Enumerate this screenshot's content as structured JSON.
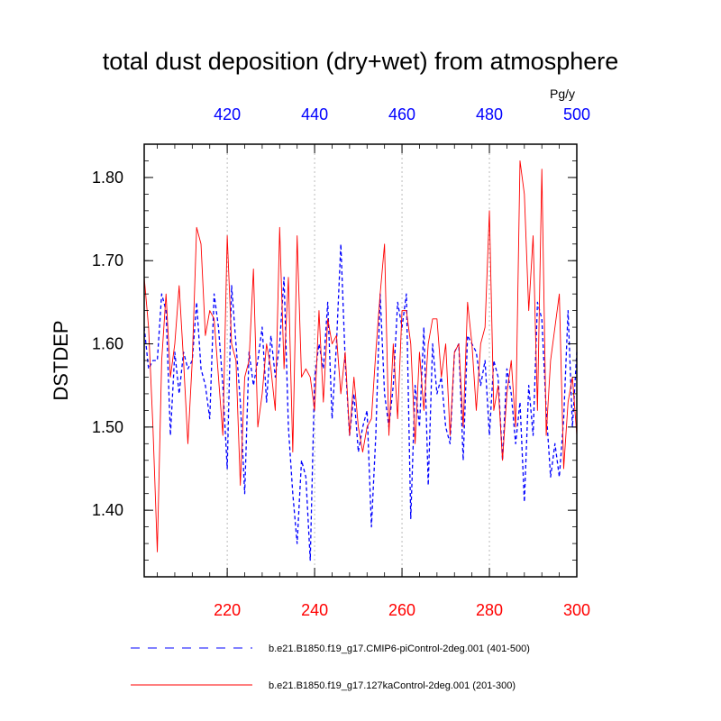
{
  "chart_data": {
    "type": "line",
    "title": "total dust deposition (dry+wet) from atmosphere",
    "units": "Pg/y",
    "ylabel": "DSTDEP",
    "ylim": [
      1.32,
      1.84
    ],
    "yticks": [
      1.4,
      1.5,
      1.6,
      1.7,
      1.8
    ],
    "ytick_labels": [
      "1.40",
      "1.50",
      "1.60",
      "1.70",
      "1.80"
    ],
    "x_bottom": {
      "range": [
        201,
        300
      ],
      "ticks": [
        220,
        240,
        260,
        280,
        300
      ],
      "color": "#ff0000"
    },
    "x_top": {
      "range": [
        401,
        500
      ],
      "ticks": [
        420,
        440,
        460,
        480,
        500
      ],
      "color": "#0000ff"
    },
    "grid_x": true,
    "series": [
      {
        "name": "b.e21.B1850.f19_g17.CMIP6-piControl-2deg.001 (401-500)",
        "legend": "b.e21.B1850.f19_g17.CMIP6-piControl-2deg.001 (401-500)",
        "color": "#0000ff",
        "dash": "dashed",
        "axis": "top",
        "x_start": 401,
        "values": [
          1.62,
          1.57,
          1.58,
          1.58,
          1.66,
          1.64,
          1.49,
          1.59,
          1.54,
          1.59,
          1.57,
          1.58,
          1.65,
          1.57,
          1.55,
          1.51,
          1.66,
          1.62,
          1.55,
          1.45,
          1.67,
          1.6,
          1.53,
          1.42,
          1.59,
          1.55,
          1.58,
          1.62,
          1.53,
          1.61,
          1.56,
          1.6,
          1.68,
          1.5,
          1.42,
          1.36,
          1.46,
          1.44,
          1.34,
          1.56,
          1.6,
          1.57,
          1.65,
          1.51,
          1.6,
          1.72,
          1.58,
          1.49,
          1.54,
          1.47,
          1.5,
          1.52,
          1.38,
          1.49,
          1.66,
          1.54,
          1.5,
          1.55,
          1.65,
          1.62,
          1.66,
          1.39,
          1.55,
          1.5,
          1.62,
          1.43,
          1.6,
          1.54,
          1.56,
          1.5,
          1.48,
          1.59,
          1.6,
          1.46,
          1.61,
          1.6,
          1.59,
          1.55,
          1.58,
          1.49,
          1.58,
          1.56,
          1.46,
          1.57,
          1.54,
          1.48,
          1.53,
          1.41,
          1.55,
          1.49,
          1.65,
          1.63,
          1.52,
          1.44,
          1.48,
          1.44,
          1.51,
          1.64,
          1.5,
          1.59
        ]
      },
      {
        "name": "b.e21.B1850.f19_g17.127kaControl-2deg.001 (201-300)",
        "legend": "b.e21.B1850.f19_g17.127kaControl-2deg.001 (201-300)",
        "color": "#ff0000",
        "dash": "solid",
        "axis": "bottom",
        "x_start": 201,
        "values": [
          1.68,
          1.62,
          1.5,
          1.35,
          1.58,
          1.66,
          1.56,
          1.6,
          1.67,
          1.58,
          1.48,
          1.58,
          1.74,
          1.72,
          1.61,
          1.64,
          1.63,
          1.56,
          1.49,
          1.73,
          1.6,
          1.58,
          1.43,
          1.56,
          1.58,
          1.69,
          1.5,
          1.54,
          1.6,
          1.57,
          1.52,
          1.74,
          1.57,
          1.68,
          1.47,
          1.73,
          1.56,
          1.57,
          1.56,
          1.52,
          1.64,
          1.53,
          1.63,
          1.6,
          1.61,
          1.54,
          1.59,
          1.49,
          1.56,
          1.5,
          1.47,
          1.5,
          1.51,
          1.59,
          1.66,
          1.72,
          1.49,
          1.6,
          1.51,
          1.64,
          1.64,
          1.6,
          1.48,
          1.59,
          1.52,
          1.6,
          1.63,
          1.63,
          1.56,
          1.6,
          1.49,
          1.59,
          1.6,
          1.5,
          1.65,
          1.6,
          1.52,
          1.6,
          1.62,
          1.76,
          1.52,
          1.55,
          1.46,
          1.54,
          1.58,
          1.5,
          1.82,
          1.78,
          1.64,
          1.73,
          1.52,
          1.81,
          1.49,
          1.58,
          1.62,
          1.66,
          1.45,
          1.53,
          1.56,
          1.49
        ]
      }
    ]
  }
}
